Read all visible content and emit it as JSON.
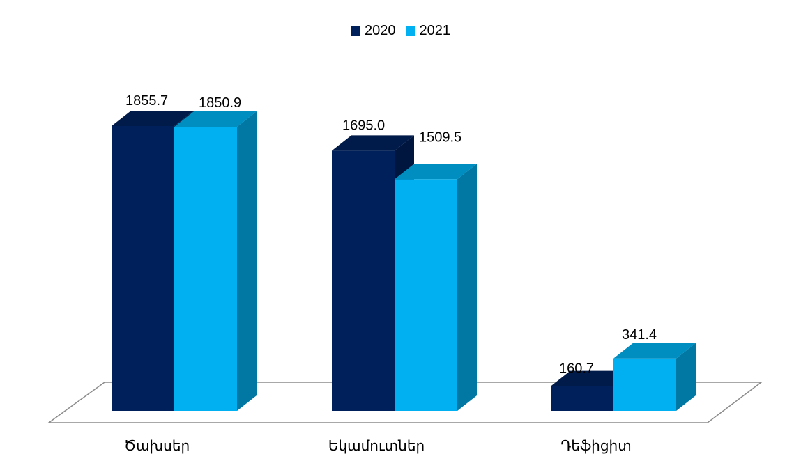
{
  "colors": {
    "series_2020": "#00205b",
    "series_2021": "#00b0f0"
  },
  "chart_data": {
    "type": "bar",
    "variant": "3d-clustered-column",
    "title": "",
    "xlabel": "",
    "ylabel": "",
    "categories": [
      "Ծախսեր",
      "Եկամուտներ",
      "Դեֆիցիտ"
    ],
    "series": [
      {
        "name": "2020",
        "values": [
          1855.7,
          1695.0,
          160.7
        ],
        "labels": [
          "1855.7",
          "1695.0",
          "160.7"
        ]
      },
      {
        "name": "2021",
        "values": [
          1850.9,
          1509.5,
          341.4
        ],
        "labels": [
          "1850.9",
          "1509.5",
          "341.4"
        ]
      }
    ],
    "ylim": [
      0,
      1855.7
    ],
    "grid": false,
    "legend_position": "top-center"
  }
}
